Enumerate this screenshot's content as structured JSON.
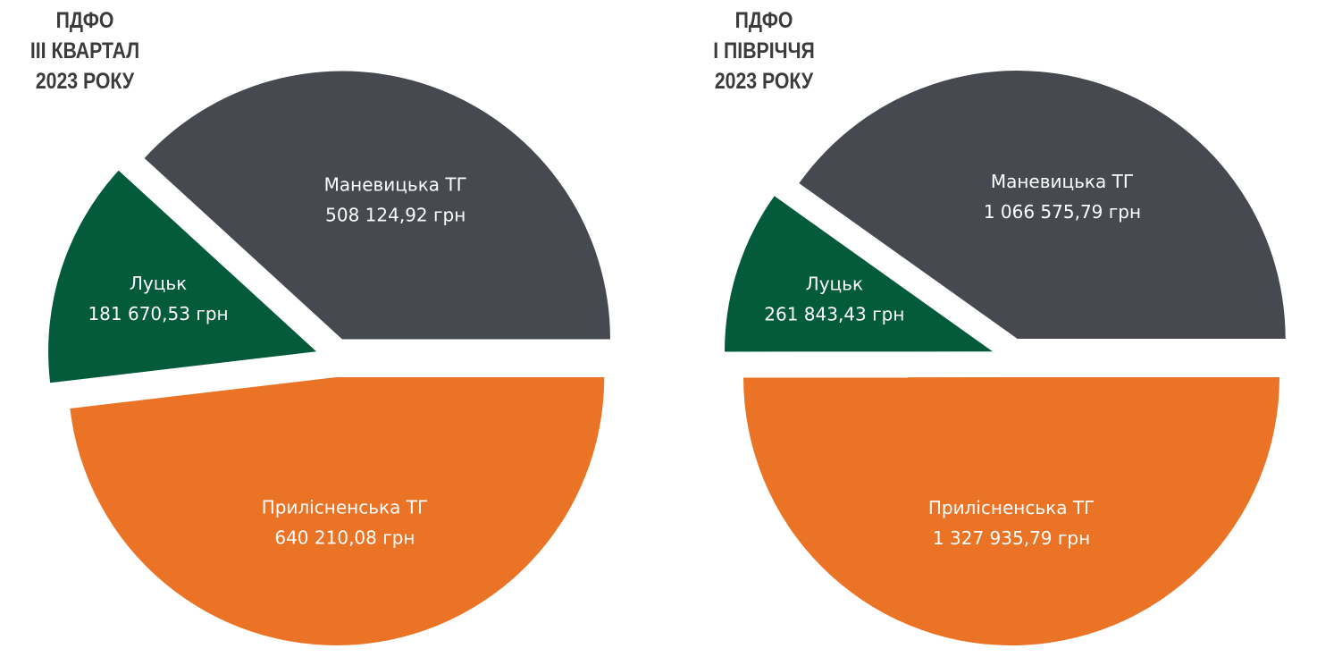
{
  "chart_data": [
    {
      "type": "pie",
      "title": [
        "ПДФО",
        "ІІІ КВАРТАЛ",
        "2023 РОКУ"
      ],
      "slices": [
        {
          "label": "Прилісненська ТГ",
          "value": 640210.08,
          "value_text": "640 210,08 грн",
          "color": "#ea7325"
        },
        {
          "label": "Луцьк",
          "value": 181670.53,
          "value_text": "181 670,53 грн",
          "color": "#035b3b"
        },
        {
          "label": "Маневицька ТГ",
          "value": 508124.92,
          "value_text": "508 124,92 грн",
          "color": "#474950"
        }
      ]
    },
    {
      "type": "pie",
      "title": [
        "ПДФО",
        "І ПІВРІЧЧЯ",
        "2023 РОКУ"
      ],
      "slices": [
        {
          "label": "Прилісненська ТГ",
          "value": 1327935.79,
          "value_text": "1 327 935,79 грн",
          "color": "#ea7325"
        },
        {
          "label": "Луцьк",
          "value": 261843.43,
          "value_text": "261 843,43 грн",
          "color": "#035b3b"
        },
        {
          "label": "Маневицька ТГ",
          "value": 1066575.79,
          "value_text": "1 066 575,79 грн",
          "color": "#474950"
        }
      ]
    }
  ]
}
